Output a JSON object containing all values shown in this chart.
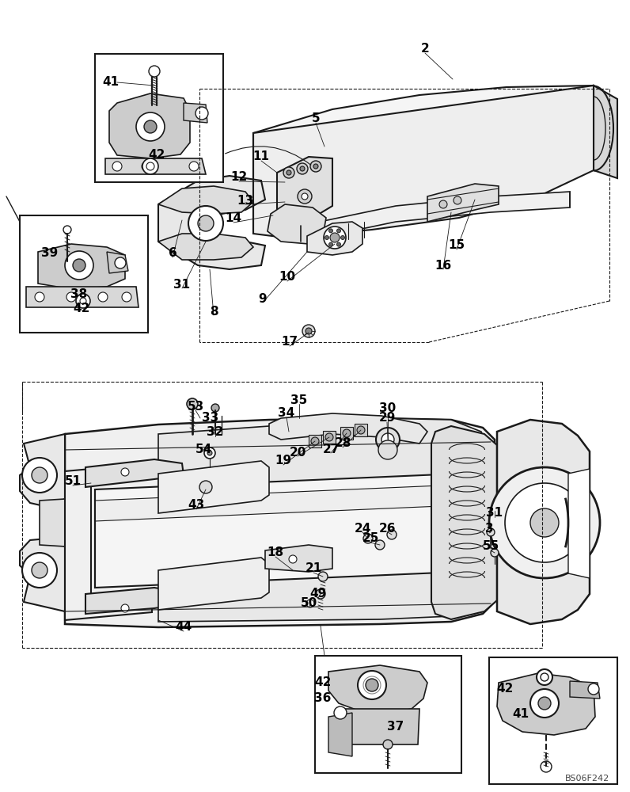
{
  "background_color": "#ffffff",
  "figure_width": 7.96,
  "figure_height": 10.0,
  "dpi": 100,
  "watermark": "BS06F242",
  "line_color": "#1a1a1a",
  "text_color": "#000000",
  "font_size_labels": 11,
  "top_labels": [
    [
      537,
      62,
      "2"
    ],
    [
      399,
      150,
      "5"
    ],
    [
      330,
      198,
      "11"
    ],
    [
      302,
      224,
      "12"
    ],
    [
      310,
      253,
      "13"
    ],
    [
      295,
      276,
      "14"
    ],
    [
      218,
      320,
      "6"
    ],
    [
      230,
      360,
      "31"
    ],
    [
      270,
      393,
      "8"
    ],
    [
      332,
      377,
      "9"
    ],
    [
      363,
      350,
      "10"
    ],
    [
      366,
      432,
      "17"
    ],
    [
      577,
      310,
      "15"
    ],
    [
      560,
      336,
      "16"
    ]
  ],
  "bottom_labels": [
    [
      378,
      505,
      "35"
    ],
    [
      362,
      522,
      "34"
    ],
    [
      266,
      527,
      "33"
    ],
    [
      272,
      546,
      "32"
    ],
    [
      247,
      513,
      "53"
    ],
    [
      257,
      568,
      "54"
    ],
    [
      92,
      608,
      "51"
    ],
    [
      248,
      638,
      "43"
    ],
    [
      232,
      792,
      "44"
    ],
    [
      358,
      582,
      "19"
    ],
    [
      376,
      571,
      "20"
    ],
    [
      418,
      567,
      "27"
    ],
    [
      433,
      560,
      "28"
    ],
    [
      489,
      528,
      "29"
    ],
    [
      490,
      516,
      "30"
    ],
    [
      348,
      698,
      "18"
    ],
    [
      396,
      718,
      "21"
    ],
    [
      458,
      667,
      "24"
    ],
    [
      468,
      680,
      "25"
    ],
    [
      490,
      667,
      "26"
    ],
    [
      618,
      668,
      "3"
    ],
    [
      625,
      648,
      "31"
    ],
    [
      620,
      690,
      "55"
    ],
    [
      390,
      762,
      "50"
    ],
    [
      402,
      750,
      "49"
    ]
  ],
  "inset1_labels": [
    [
      140,
      104,
      "41"
    ],
    [
      198,
      196,
      "42"
    ]
  ],
  "inset2_labels": [
    [
      63,
      320,
      "39"
    ],
    [
      100,
      372,
      "38"
    ],
    [
      103,
      390,
      "42"
    ]
  ],
  "inset3_labels": [
    [
      408,
      862,
      "42"
    ],
    [
      408,
      882,
      "36"
    ],
    [
      500,
      918,
      "37"
    ]
  ],
  "inset4_labels": [
    [
      638,
      870,
      "42"
    ],
    [
      658,
      902,
      "41"
    ]
  ]
}
